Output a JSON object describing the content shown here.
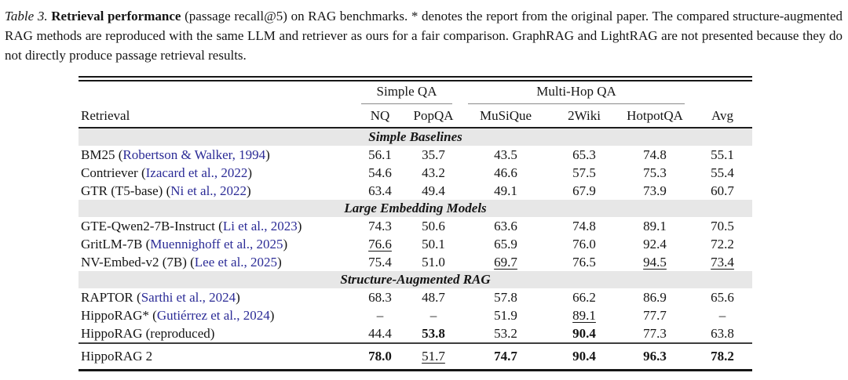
{
  "caption": {
    "label": "Table 3.",
    "title": "Retrieval performance",
    "body": " (passage recall@5) on RAG benchmarks. * denotes the report from the original paper. The compared structure-augmented RAG methods are reproduced with the same LLM and retriever as ours for a fair comparison. GraphRAG and LightRAG are not presented because they do not directly produce passage retrieval results."
  },
  "table": {
    "groups": {
      "simple": "Simple QA",
      "multihop": "Multi-Hop QA"
    },
    "columns": [
      "Retrieval",
      "NQ",
      "PopQA",
      "MuSiQue",
      "2Wiki",
      "HotpotQA",
      "Avg"
    ],
    "sections": [
      {
        "title": "Simple Baselines",
        "rows": [
          {
            "pre": "BM25 (",
            "cite": "Robertson & Walker, 1994",
            "post": ")",
            "cells": [
              "56.1",
              "35.7",
              "43.5",
              "65.3",
              "74.8",
              "55.1"
            ]
          },
          {
            "pre": "Contriever (",
            "cite": "Izacard et al., 2022",
            "post": ")",
            "cells": [
              "54.6",
              "43.2",
              "46.6",
              "57.5",
              "75.3",
              "55.4"
            ]
          },
          {
            "pre": "GTR (T5-base) (",
            "cite": "Ni et al., 2022",
            "post": ")",
            "cells": [
              "63.4",
              "49.4",
              "49.1",
              "67.9",
              "73.9",
              "60.7"
            ]
          }
        ]
      },
      {
        "title": "Large Embedding Models",
        "rows": [
          {
            "pre": "GTE-Qwen2-7B-Instruct (",
            "cite": "Li et al., 2023",
            "post": ")",
            "cells": [
              "74.3",
              "50.6",
              "63.6",
              "74.8",
              "89.1",
              "70.5"
            ]
          },
          {
            "pre": "GritLM-7B (",
            "cite": "Muennighoff et al., 2025",
            "post": ")",
            "cells": [
              "76.6",
              "50.1",
              "65.9",
              "76.0",
              "92.4",
              "72.2"
            ]
          },
          {
            "pre": "NV-Embed-v2 (7B) (",
            "cite": "Lee et al., 2025",
            "post": ")",
            "cells": [
              "75.4",
              "51.0",
              "69.7",
              "76.5",
              "94.5",
              "73.4"
            ]
          }
        ]
      },
      {
        "title": "Structure-Augmented RAG",
        "rows": [
          {
            "pre": "RAPTOR (",
            "cite": "Sarthi et al., 2024",
            "post": ")",
            "cells": [
              "68.3",
              "48.7",
              "57.8",
              "66.2",
              "86.9",
              "65.6"
            ]
          },
          {
            "pre": "HippoRAG* (",
            "cite": "Gutiérrez et al., 2024",
            "post": ")",
            "cells": [
              "–",
              "–",
              "51.9",
              "89.1",
              "77.7",
              "–"
            ]
          },
          {
            "pre": "HippoRAG (reproduced)",
            "cite": "",
            "post": "",
            "cells": [
              "44.4",
              "53.8",
              "53.2",
              "90.4",
              "77.3",
              "63.8"
            ]
          }
        ]
      }
    ],
    "final": {
      "pre": "HippoRAG 2",
      "cite": "",
      "post": "",
      "cells": [
        "78.0",
        "51.7",
        "74.7",
        "90.4",
        "96.3",
        "78.2"
      ]
    }
  }
}
